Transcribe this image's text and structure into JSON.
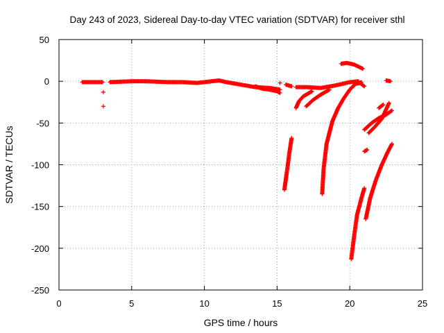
{
  "chart_data": {
    "type": "scatter",
    "title": "Day 243 of 2023, Sidereal Day-to-day VTEC variation (SDTVAR) for receiver sthl",
    "xlabel": "GPS time / hours",
    "ylabel": "SDTVAR / TECUs",
    "xlim": [
      0,
      25
    ],
    "ylim": [
      -250,
      50
    ],
    "xticks": [
      0,
      5,
      10,
      15,
      20,
      25
    ],
    "yticks": [
      50,
      0,
      -50,
      -100,
      -150,
      -200,
      -250
    ],
    "grid": true,
    "marker": "+",
    "color": "#ff0000",
    "series": [
      {
        "segments": [
          {
            "x": [
              1.6,
              3.0
            ],
            "y": [
              -1,
              -1
            ]
          },
          {
            "x": [
              3.5,
              5.0,
              6.0,
              7.5,
              8.5,
              9.5,
              10.5,
              11.0,
              11.5,
              12.5,
              13.5,
              14.5,
              15.2
            ],
            "y": [
              -1,
              0,
              0,
              -1,
              -1,
              -2,
              0,
              1,
              -1,
              -4,
              -7,
              -8,
              -10
            ]
          },
          {
            "x": [
              13.5,
              14.0,
              14.5,
              15.0,
              15.2
            ],
            "y": [
              -6,
              -9,
              -10,
              -12,
              -14
            ]
          },
          {
            "x": [
              15.6,
              16.0
            ],
            "y": [
              -4,
              -6
            ]
          },
          {
            "x": [
              16.3,
              17.0,
              18.0,
              19.0,
              20.0,
              20.6
            ],
            "y": [
              -7,
              -7,
              -8,
              -5,
              -1,
              0
            ]
          },
          {
            "x": [
              19.4,
              19.8,
              20.3,
              20.9
            ],
            "y": [
              21,
              22,
              20,
              15
            ]
          },
          {
            "x": [
              20.4,
              20.7,
              21.0
            ],
            "y": [
              -3,
              -2,
              -6
            ]
          },
          {
            "x": [
              22.5,
              22.8
            ],
            "y": [
              1,
              0
            ]
          },
          {
            "x": [
              15.5,
              15.7,
              15.85,
              16.0
            ],
            "y": [
              -130,
              -105,
              -85,
              -68
            ]
          },
          {
            "x": [
              16.3,
              16.5,
              16.8,
              17.4
            ],
            "y": [
              -32,
              -24,
              -18,
              -12
            ]
          },
          {
            "x": [
              17.0,
              17.5,
              18.0,
              18.6
            ],
            "y": [
              -30,
              -22,
              -16,
              -10
            ]
          },
          {
            "x": [
              18.1,
              18.2,
              18.4,
              18.8,
              19.2,
              19.6,
              20.0,
              20.4,
              20.8
            ],
            "y": [
              -135,
              -105,
              -75,
              -48,
              -32,
              -20,
              -10,
              -3,
              -1
            ]
          },
          {
            "x": [
              20.1,
              20.3,
              20.5,
              20.8,
              21.0
            ],
            "y": [
              -213,
              -185,
              -160,
              -140,
              -128
            ]
          },
          {
            "x": [
              21.1,
              21.4,
              21.8,
              22.2,
              22.6,
              22.9
            ],
            "y": [
              -165,
              -140,
              -118,
              -100,
              -85,
              -75
            ]
          },
          {
            "x": [
              21.0,
              21.5,
              22.0,
              22.5,
              22.9
            ],
            "y": [
              -58,
              -50,
              -44,
              -40,
              -35
            ]
          },
          {
            "x": [
              21.3,
              21.7,
              22.2,
              22.7
            ],
            "y": [
              -62,
              -55,
              -45,
              -26
            ]
          },
          {
            "x": [
              21.0,
              21.2
            ],
            "y": [
              -84,
              -82
            ]
          },
          {
            "x": [
              22.0,
              22.3
            ],
            "y": [
              -32,
              -28
            ]
          }
        ],
        "isolated_points": [
          [
            3.05,
            -13
          ],
          [
            3.05,
            -30
          ],
          [
            15.2,
            -2
          ]
        ]
      }
    ]
  }
}
